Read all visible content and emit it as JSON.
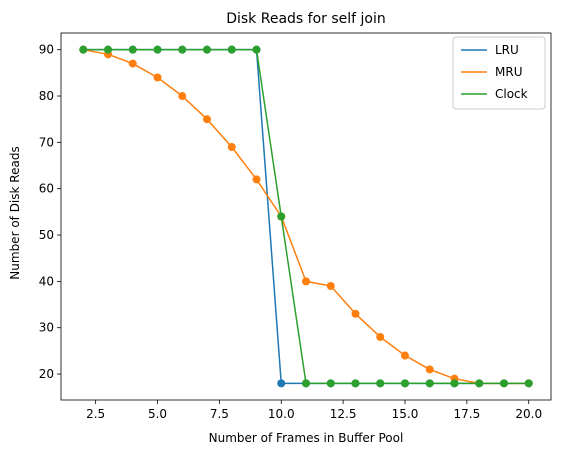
{
  "chart_data": {
    "type": "line",
    "title": "Disk Reads for self join",
    "xlabel": "Number of Frames in Buffer Pool",
    "ylabel": "Number of Disk Reads",
    "xlim": [
      1.1,
      20.9
    ],
    "ylim": [
      14.4,
      93.6
    ],
    "xticks": [
      2.5,
      5.0,
      7.5,
      10.0,
      12.5,
      15.0,
      17.5,
      20.0
    ],
    "xtick_labels": [
      "2.5",
      "5.0",
      "7.5",
      "10.0",
      "12.5",
      "15.0",
      "17.5",
      "20.0"
    ],
    "yticks": [
      20,
      30,
      40,
      50,
      60,
      70,
      80,
      90
    ],
    "ytick_labels": [
      "20",
      "30",
      "40",
      "50",
      "60",
      "70",
      "80",
      "90"
    ],
    "grid": false,
    "legend_position": "top-right",
    "x": [
      2,
      3,
      4,
      5,
      6,
      7,
      8,
      9,
      10,
      11,
      12,
      13,
      14,
      15,
      16,
      17,
      18,
      19,
      20
    ],
    "series": [
      {
        "name": "LRU",
        "color": "#1f77b4",
        "values": [
          90,
          90,
          90,
          90,
          90,
          90,
          90,
          90,
          18,
          18,
          18,
          18,
          18,
          18,
          18,
          18,
          18,
          18,
          18
        ]
      },
      {
        "name": "MRU",
        "color": "#ff7f0e",
        "values": [
          90,
          89,
          87,
          84,
          80,
          75,
          69,
          62,
          54,
          40,
          39,
          33,
          28,
          24,
          21,
          19,
          18,
          18,
          18
        ]
      },
      {
        "name": "Clock",
        "color": "#2ca02c",
        "values": [
          90,
          90,
          90,
          90,
          90,
          90,
          90,
          90,
          54,
          18,
          18,
          18,
          18,
          18,
          18,
          18,
          18,
          18,
          18
        ]
      }
    ]
  }
}
